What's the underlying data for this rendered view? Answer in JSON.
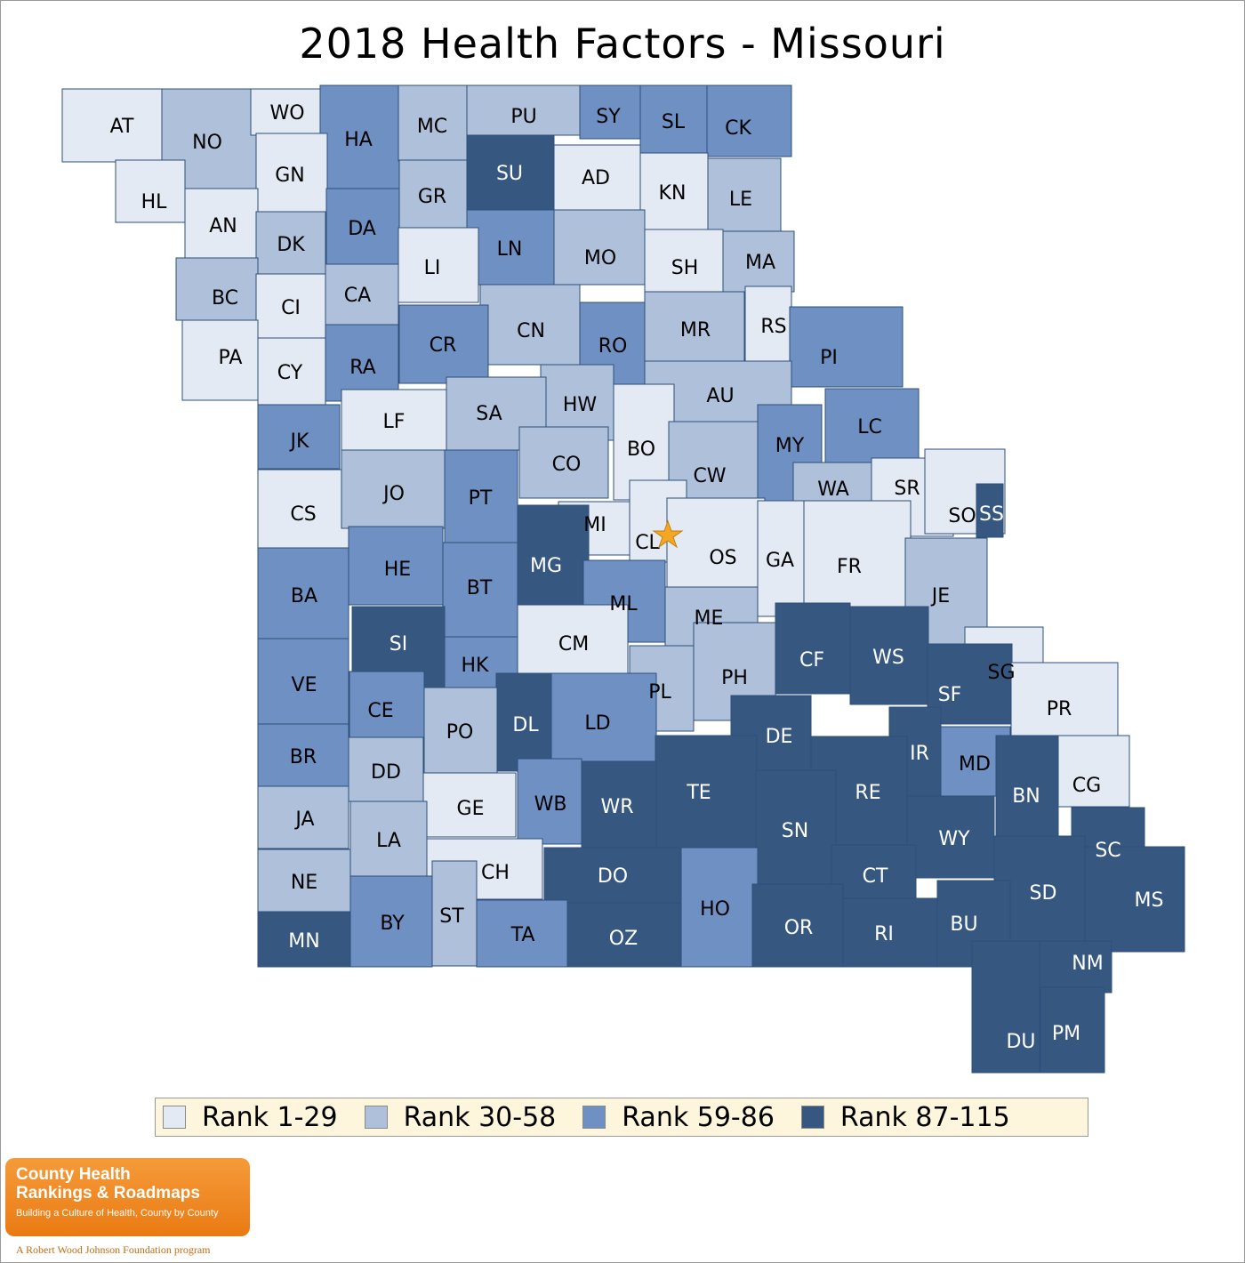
{
  "title": "2018 Health Factors - Missouri",
  "colors": {
    "rank_1_29": "#e3eaf3",
    "rank_30_58": "#aec0da",
    "rank_59_86": "#6e90c2",
    "rank_87_115": "#355780",
    "border": "#2f4f7a",
    "star": "#f5a623"
  },
  "legend": [
    {
      "label": "Rank 1-29",
      "tier": 1
    },
    {
      "label": "Rank 30-58",
      "tier": 2
    },
    {
      "label": "Rank 59-86",
      "tier": 3
    },
    {
      "label": "Rank 87-115",
      "tier": 4
    }
  ],
  "counties": [
    {
      "abbr": "AT",
      "tier": 1
    },
    {
      "abbr": "NO",
      "tier": 2
    },
    {
      "abbr": "WO",
      "tier": 1
    },
    {
      "abbr": "HA",
      "tier": 3
    },
    {
      "abbr": "MC",
      "tier": 2
    },
    {
      "abbr": "PU",
      "tier": 2
    },
    {
      "abbr": "SY",
      "tier": 3
    },
    {
      "abbr": "SL",
      "tier": 3
    },
    {
      "abbr": "CK",
      "tier": 3
    },
    {
      "abbr": "HL",
      "tier": 1
    },
    {
      "abbr": "GN",
      "tier": 1
    },
    {
      "abbr": "SU",
      "tier": 4
    },
    {
      "abbr": "AD",
      "tier": 1
    },
    {
      "abbr": "KN",
      "tier": 1
    },
    {
      "abbr": "LE",
      "tier": 2
    },
    {
      "abbr": "AN",
      "tier": 1
    },
    {
      "abbr": "DK",
      "tier": 2
    },
    {
      "abbr": "DA",
      "tier": 3
    },
    {
      "abbr": "GR",
      "tier": 2
    },
    {
      "abbr": "LN",
      "tier": 3
    },
    {
      "abbr": "MO",
      "tier": 2
    },
    {
      "abbr": "SH",
      "tier": 1
    },
    {
      "abbr": "MA",
      "tier": 2
    },
    {
      "abbr": "BC",
      "tier": 2
    },
    {
      "abbr": "CI",
      "tier": 1
    },
    {
      "abbr": "CA",
      "tier": 2
    },
    {
      "abbr": "LI",
      "tier": 1
    },
    {
      "abbr": "CN",
      "tier": 2
    },
    {
      "abbr": "RO",
      "tier": 3
    },
    {
      "abbr": "MR",
      "tier": 2
    },
    {
      "abbr": "RS",
      "tier": 1
    },
    {
      "abbr": "PA",
      "tier": 1
    },
    {
      "abbr": "CY",
      "tier": 1
    },
    {
      "abbr": "RA",
      "tier": 3
    },
    {
      "abbr": "CR",
      "tier": 3
    },
    {
      "abbr": "PI",
      "tier": 3
    },
    {
      "abbr": "AU",
      "tier": 2
    },
    {
      "abbr": "HW",
      "tier": 2
    },
    {
      "abbr": "JK",
      "tier": 3
    },
    {
      "abbr": "LF",
      "tier": 1
    },
    {
      "abbr": "SA",
      "tier": 2
    },
    {
      "abbr": "BO",
      "tier": 1
    },
    {
      "abbr": "CW",
      "tier": 2
    },
    {
      "abbr": "MY",
      "tier": 3
    },
    {
      "abbr": "LC",
      "tier": 3
    },
    {
      "abbr": "CO",
      "tier": 2
    },
    {
      "abbr": "CS",
      "tier": 1
    },
    {
      "abbr": "JO",
      "tier": 2
    },
    {
      "abbr": "PT",
      "tier": 3
    },
    {
      "abbr": "WA",
      "tier": 2
    },
    {
      "abbr": "SR",
      "tier": 1
    },
    {
      "abbr": "SO",
      "tier": 1
    },
    {
      "abbr": "SS",
      "tier": 4
    },
    {
      "abbr": "MI",
      "tier": 1
    },
    {
      "abbr": "CL",
      "tier": 1
    },
    {
      "abbr": "OS",
      "tier": 1
    },
    {
      "abbr": "GA",
      "tier": 1
    },
    {
      "abbr": "FR",
      "tier": 1
    },
    {
      "abbr": "HE",
      "tier": 3
    },
    {
      "abbr": "MG",
      "tier": 4
    },
    {
      "abbr": "BT",
      "tier": 3
    },
    {
      "abbr": "BA",
      "tier": 3
    },
    {
      "abbr": "ML",
      "tier": 3
    },
    {
      "abbr": "JE",
      "tier": 2
    },
    {
      "abbr": "ME",
      "tier": 2
    },
    {
      "abbr": "SI",
      "tier": 4
    },
    {
      "abbr": "CM",
      "tier": 1
    },
    {
      "abbr": "CF",
      "tier": 4
    },
    {
      "abbr": "WS",
      "tier": 4
    },
    {
      "abbr": "SG",
      "tier": 1
    },
    {
      "abbr": "HK",
      "tier": 3
    },
    {
      "abbr": "VE",
      "tier": 3
    },
    {
      "abbr": "PH",
      "tier": 2
    },
    {
      "abbr": "PL",
      "tier": 2
    },
    {
      "abbr": "SF",
      "tier": 4
    },
    {
      "abbr": "PR",
      "tier": 1
    },
    {
      "abbr": "CE",
      "tier": 3
    },
    {
      "abbr": "DL",
      "tier": 4
    },
    {
      "abbr": "LD",
      "tier": 3
    },
    {
      "abbr": "DE",
      "tier": 4
    },
    {
      "abbr": "IR",
      "tier": 4
    },
    {
      "abbr": "PO",
      "tier": 2
    },
    {
      "abbr": "MD",
      "tier": 3
    },
    {
      "abbr": "BR",
      "tier": 3
    },
    {
      "abbr": "DD",
      "tier": 2
    },
    {
      "abbr": "TE",
      "tier": 4
    },
    {
      "abbr": "RE",
      "tier": 4
    },
    {
      "abbr": "BN",
      "tier": 4
    },
    {
      "abbr": "CG",
      "tier": 1
    },
    {
      "abbr": "WB",
      "tier": 3
    },
    {
      "abbr": "WR",
      "tier": 4
    },
    {
      "abbr": "GE",
      "tier": 1
    },
    {
      "abbr": "SN",
      "tier": 4
    },
    {
      "abbr": "JA",
      "tier": 2
    },
    {
      "abbr": "LA",
      "tier": 2
    },
    {
      "abbr": "WY",
      "tier": 4
    },
    {
      "abbr": "SC",
      "tier": 4
    },
    {
      "abbr": "CH",
      "tier": 1
    },
    {
      "abbr": "DO",
      "tier": 4
    },
    {
      "abbr": "CT",
      "tier": 4
    },
    {
      "abbr": "NE",
      "tier": 2
    },
    {
      "abbr": "SD",
      "tier": 4
    },
    {
      "abbr": "MS",
      "tier": 4
    },
    {
      "abbr": "BY",
      "tier": 3
    },
    {
      "abbr": "ST",
      "tier": 2
    },
    {
      "abbr": "HO",
      "tier": 3
    },
    {
      "abbr": "TA",
      "tier": 3
    },
    {
      "abbr": "OZ",
      "tier": 4
    },
    {
      "abbr": "OR",
      "tier": 4
    },
    {
      "abbr": "RI",
      "tier": 4
    },
    {
      "abbr": "BU",
      "tier": 4
    },
    {
      "abbr": "MN",
      "tier": 4
    },
    {
      "abbr": "NM",
      "tier": 4
    },
    {
      "abbr": "DU",
      "tier": 4
    },
    {
      "abbr": "PM",
      "tier": 4
    }
  ],
  "logo": {
    "line1": "County Health",
    "line2": "Rankings & Roadmaps",
    "line3": "Building a Culture of Health, County by County",
    "sponsor": "A Robert Wood Johnson Foundation program"
  },
  "capital_icon": "star-icon"
}
